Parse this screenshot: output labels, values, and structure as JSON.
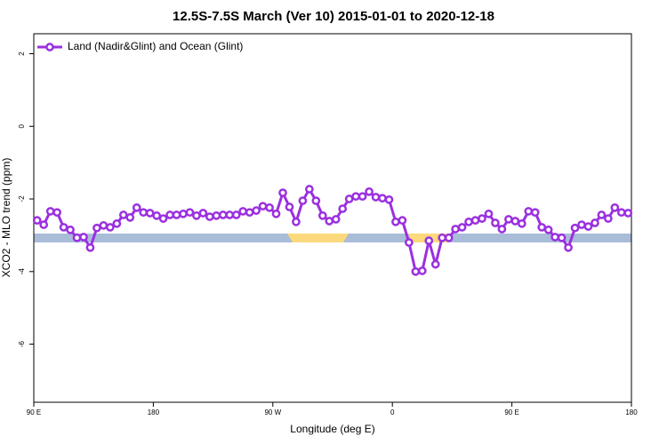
{
  "chart_data": {
    "type": "line",
    "title": "12.5S-7.5S March (Ver 10)   2015-01-01 to 2020-12-18",
    "x_label": "Longitude (deg E)",
    "y_label": "XCO2 - MLO trend (ppm)",
    "xlim": [
      90,
      540
    ],
    "ylim": [
      -7.6,
      2.55
    ],
    "xticks": [
      {
        "value": 90,
        "label": "90 E"
      },
      180,
      {
        "value": 270,
        "label": "90 W"
      },
      {
        "value": 360,
        "label": "0"
      },
      {
        "value": 450,
        "label": "90 E"
      },
      {
        "value": 540,
        "label": "180"
      }
    ],
    "yticks": [
      -6,
      -4,
      -2,
      0,
      2
    ],
    "legend": "top-left",
    "x": [
      92.5,
      97.5,
      102.5,
      107.5,
      112.5,
      117.5,
      122.5,
      127.5,
      132.5,
      137.5,
      142.5,
      147.5,
      152.5,
      157.5,
      162.5,
      167.5,
      172.5,
      177.5,
      182.5,
      187.5,
      192.5,
      197.5,
      202.5,
      207.5,
      212.5,
      217.5,
      222.5,
      227.5,
      232.5,
      237.5,
      242.5,
      247.5,
      252.5,
      257.5,
      262.5,
      267.5,
      272.5,
      277.5,
      282.5,
      287.5,
      292.5,
      297.5,
      302.5,
      307.5,
      312.5,
      317.5,
      322.5,
      327.5,
      332.5,
      337.5,
      342.5,
      347.5,
      352.5,
      357.5,
      362.5,
      367.5,
      372.5,
      377.5,
      382.5,
      387.5,
      392.5,
      397.5,
      402.5,
      407.5,
      412.5,
      417.5,
      422.5,
      427.5,
      432.5,
      437.5,
      442.5,
      447.5,
      452.5,
      457.5,
      462.5,
      467.5,
      472.5,
      477.5,
      482.5,
      487.5,
      492.5,
      497.5,
      502.5,
      507.5,
      512.5,
      517.5,
      522.5,
      527.5,
      532.5,
      537.5
    ],
    "series": [
      {
        "name": "Land (Nadir&Glint) and Ocean (Glint)",
        "color": "#9b30e0",
        "values": [
          -2.59,
          -2.71,
          -2.34,
          -2.37,
          -2.78,
          -2.85,
          -3.07,
          -3.05,
          -3.34,
          -2.8,
          -2.73,
          -2.78,
          -2.68,
          -2.44,
          -2.51,
          -2.24,
          -2.37,
          -2.39,
          -2.46,
          -2.54,
          -2.44,
          -2.44,
          -2.41,
          -2.37,
          -2.46,
          -2.39,
          -2.49,
          -2.46,
          -2.44,
          -2.44,
          -2.44,
          -2.34,
          -2.37,
          -2.32,
          -2.2,
          -2.24,
          -2.41,
          -1.83,
          -2.22,
          -2.63,
          -2.05,
          -1.73,
          -2.05,
          -2.46,
          -2.61,
          -2.56,
          -2.27,
          -2.0,
          -1.93,
          -1.93,
          -1.8,
          -1.95,
          -1.98,
          -2.02,
          -2.63,
          -2.59,
          -3.2,
          -4.0,
          -3.98,
          -3.15,
          -3.8,
          -3.07,
          -3.07,
          -2.83,
          -2.78,
          -2.63,
          -2.59,
          -2.54,
          -2.41,
          -2.66,
          -2.83,
          -2.56,
          -2.61,
          -2.68,
          -2.34,
          -2.37,
          -2.78,
          -2.85,
          -3.05,
          -3.07,
          -3.34,
          -2.8,
          -2.71,
          -2.76,
          -2.66,
          -2.44,
          -2.54,
          -2.24,
          -2.37,
          -2.39
        ]
      }
    ]
  }
}
